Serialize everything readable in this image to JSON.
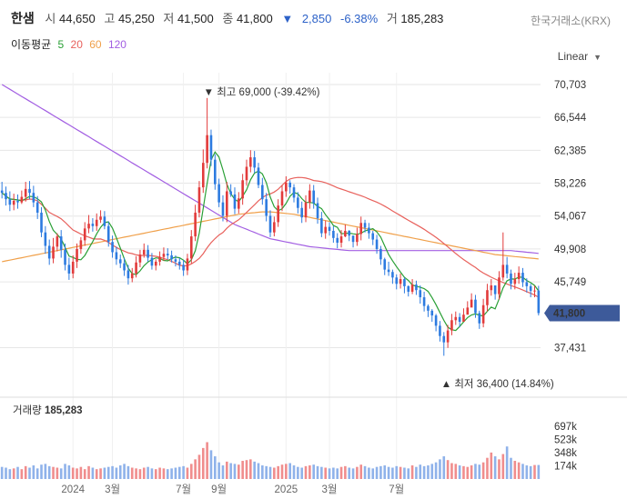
{
  "header": {
    "name": "한샘",
    "open_label": "시",
    "open": "44,650",
    "high_label": "고",
    "high": "45,250",
    "low_label": "저",
    "low": "41,500",
    "close_label": "종",
    "close": "41,800",
    "change": "2,850",
    "change_pct": "-6.38%",
    "volume_label": "거",
    "volume": "185,283",
    "exchange": "한국거래소(KRX)"
  },
  "ma_legend": {
    "label": "이동평균",
    "items": [
      {
        "period": "5",
        "color": "#2aa036"
      },
      {
        "period": "20",
        "color": "#e8615c"
      },
      {
        "period": "60",
        "color": "#f0a04a"
      },
      {
        "period": "120",
        "color": "#a25ee2"
      }
    ]
  },
  "scale_label": "Linear",
  "colors": {
    "up": "#e23b3b",
    "down": "#2d7be0",
    "grid": "#e6e6e6",
    "current_bg": "#3d5a9a"
  },
  "chart_data": {
    "type": "candlestick",
    "price_axis": {
      "ticks": [
        "70,703",
        "66,544",
        "62,385",
        "58,226",
        "54,067",
        "49,908",
        "45,749",
        "41,800",
        "37,431"
      ]
    },
    "x_axis": {
      "ticks": [
        "2024",
        "3월",
        "7월",
        "9월",
        "2025",
        "3월",
        "7월"
      ]
    },
    "current_price_label": "41,800",
    "annotations": {
      "high": {
        "text": "▼ 최고 69,000 (-39.42%)",
        "value": 69000
      },
      "low": {
        "text": "▲ 최저 36,400 (14.84%)",
        "value": 36400
      }
    },
    "volume_panel": {
      "title": "거래량",
      "value": "185,283",
      "ticks": [
        "697k",
        "523k",
        "348k",
        "174k"
      ]
    },
    "close": [
      57000,
      56200,
      55500,
      56000,
      55800,
      56500,
      57500,
      57000,
      55800,
      54500,
      52000,
      50300,
      48700,
      50200,
      51500,
      49800,
      47900,
      46800,
      48300,
      49900,
      51000,
      52500,
      53100,
      52800,
      53600,
      54000,
      52800,
      50800,
      49500,
      48600,
      48100,
      47200,
      46200,
      46800,
      48200,
      49200,
      49800,
      48800,
      47800,
      48300,
      48900,
      49300,
      49100,
      48600,
      48300,
      47900,
      47200,
      48700,
      51500,
      54500,
      57700,
      60800,
      64300,
      61200,
      58100,
      55800,
      54100,
      57200,
      56800,
      55000,
      56300,
      58600,
      60300,
      61500,
      60200,
      58000,
      56200,
      54100,
      52000,
      53300,
      55400,
      57200,
      58300,
      57700,
      56400,
      55100,
      53900,
      55800,
      57300,
      55700,
      53800,
      51900,
      52700,
      52200,
      51300,
      50700,
      51500,
      52200,
      51600,
      50800,
      51800,
      53200,
      52600,
      51900,
      51100,
      49900,
      48600,
      47300,
      47000,
      46300,
      45500,
      46100,
      45200,
      44500,
      45400,
      44700,
      43800,
      42700,
      42100,
      41500,
      40200,
      38900,
      38100,
      39600,
      40900,
      41300,
      40700,
      41600,
      42500,
      43500,
      41800,
      40500,
      42800,
      44700,
      45300,
      44200,
      46300,
      47900,
      46800,
      45500,
      46100,
      46900,
      45700,
      45200,
      44600,
      44650,
      41800
    ],
    "open": [
      57300,
      57000,
      56200,
      55500,
      56000,
      55800,
      56500,
      57500,
      57000,
      55800,
      54500,
      52000,
      50300,
      48700,
      50200,
      51500,
      49800,
      47900,
      46800,
      48300,
      49900,
      51000,
      52500,
      53100,
      52800,
      53600,
      54000,
      52800,
      50800,
      49500,
      48600,
      48100,
      47200,
      46200,
      46800,
      48200,
      49200,
      49800,
      48800,
      47800,
      48300,
      48900,
      49300,
      49100,
      48600,
      48300,
      47900,
      47200,
      48700,
      51500,
      54500,
      57700,
      60800,
      64300,
      61200,
      58100,
      55800,
      54100,
      57200,
      56800,
      55000,
      56300,
      58600,
      60300,
      61500,
      60200,
      58000,
      56200,
      54100,
      52000,
      53300,
      55400,
      57200,
      58300,
      57700,
      56400,
      55100,
      53900,
      55800,
      57300,
      55700,
      53800,
      51900,
      52700,
      52200,
      51300,
      50700,
      51500,
      52200,
      51600,
      50800,
      51800,
      53200,
      52600,
      51900,
      51100,
      49900,
      48600,
      47300,
      47000,
      46300,
      45500,
      46100,
      45200,
      44500,
      45400,
      44700,
      43800,
      42700,
      42100,
      41500,
      40200,
      38900,
      38100,
      39600,
      40900,
      41300,
      40700,
      41600,
      42500,
      43500,
      41800,
      40500,
      42800,
      44700,
      45300,
      44200,
      46300,
      47900,
      46800,
      45500,
      46100,
      46900,
      45700,
      45200,
      44600,
      44650
    ],
    "high": [
      58400,
      57800,
      57200,
      56900,
      56800,
      57300,
      58400,
      58500,
      57900,
      56600,
      55200,
      52800,
      51100,
      51300,
      51900,
      52300,
      50600,
      48800,
      49100,
      50600,
      51400,
      53300,
      54200,
      53800,
      54400,
      54800,
      54700,
      53400,
      51600,
      50200,
      49200,
      48800,
      47900,
      47500,
      49000,
      49800,
      50600,
      50400,
      49400,
      48600,
      49600,
      50100,
      50000,
      49700,
      49100,
      48800,
      48500,
      49300,
      52300,
      55500,
      58500,
      62500,
      69000,
      65000,
      61900,
      58800,
      56700,
      58400,
      58100,
      57700,
      57100,
      59400,
      61200,
      62400,
      62300,
      60800,
      58900,
      57000,
      54800,
      54000,
      56200,
      58000,
      59100,
      58600,
      58100,
      57100,
      55900,
      56700,
      58100,
      58000,
      56400,
      54600,
      53500,
      53300,
      52800,
      51900,
      52300,
      53000,
      52300,
      51600,
      52600,
      54000,
      53600,
      53200,
      52200,
      51700,
      50300,
      48800,
      48300,
      47300,
      46700,
      46800,
      46300,
      45300,
      46100,
      45900,
      45300,
      44500,
      42900,
      42300,
      41700,
      40800,
      39400,
      40300,
      41700,
      42000,
      41800,
      42400,
      43300,
      44300,
      44100,
      42100,
      43600,
      45500,
      46100,
      45300,
      47100,
      52000,
      48900,
      47300,
      46900,
      47700,
      47500,
      46200,
      45500,
      45250,
      45250
    ],
    "low": [
      56300,
      55400,
      54700,
      54800,
      55000,
      55600,
      55900,
      56200,
      55200,
      53700,
      51400,
      49300,
      47900,
      48100,
      49600,
      48800,
      47200,
      46000,
      46200,
      47500,
      49300,
      50300,
      51900,
      52100,
      52200,
      53200,
      52400,
      50200,
      48800,
      47900,
      47500,
      46500,
      45400,
      45700,
      46300,
      47600,
      48800,
      48300,
      47300,
      47200,
      47800,
      48400,
      48600,
      48200,
      47700,
      47300,
      46500,
      46600,
      48100,
      50900,
      53900,
      57000,
      60100,
      60400,
      57400,
      55200,
      53400,
      53300,
      56500,
      54300,
      54400,
      55500,
      57900,
      59600,
      59500,
      57600,
      55500,
      53400,
      51400,
      51500,
      52700,
      54700,
      56500,
      56900,
      55800,
      54400,
      53200,
      53300,
      55000,
      55000,
      53100,
      51400,
      51200,
      51600,
      50700,
      50000,
      50100,
      51400,
      50900,
      50100,
      50300,
      51000,
      52000,
      51200,
      50400,
      49300,
      47900,
      46600,
      46500,
      45500,
      44800,
      44900,
      44300,
      43900,
      44200,
      44100,
      43000,
      42000,
      41300,
      40700,
      39500,
      38200,
      36400,
      37400,
      39000,
      40300,
      40000,
      40800,
      41700,
      42800,
      41200,
      39800,
      40000,
      42000,
      44000,
      43500,
      43500,
      45900,
      46200,
      44800,
      44800,
      45500,
      45100,
      44400,
      43800,
      43800,
      41500
    ],
    "volume": [
      160000,
      150000,
      130000,
      140000,
      160000,
      130000,
      170000,
      150000,
      180000,
      140000,
      190000,
      200000,
      170000,
      160000,
      150000,
      140000,
      200000,
      180000,
      150000,
      140000,
      160000,
      130000,
      170000,
      150000,
      130000,
      140000,
      150000,
      160000,
      170000,
      150000,
      180000,
      200000,
      170000,
      150000,
      140000,
      130000,
      150000,
      160000,
      140000,
      130000,
      150000,
      140000,
      130000,
      140000,
      150000,
      160000,
      170000,
      150000,
      200000,
      260000,
      320000,
      410000,
      487000,
      380000,
      300000,
      220000,
      180000,
      230000,
      210000,
      200000,
      190000,
      240000,
      250000,
      260000,
      230000,
      210000,
      180000,
      170000,
      160000,
      150000,
      170000,
      190000,
      200000,
      210000,
      180000,
      160000,
      150000,
      170000,
      180000,
      190000,
      170000,
      160000,
      150000,
      140000,
      150000,
      140000,
      160000,
      170000,
      150000,
      140000,
      160000,
      190000,
      170000,
      150000,
      140000,
      160000,
      170000,
      180000,
      160000,
      150000,
      170000,
      160000,
      150000,
      140000,
      180000,
      160000,
      190000,
      170000,
      180000,
      200000,
      220000,
      260000,
      300000,
      250000,
      210000,
      200000,
      180000,
      170000,
      160000,
      180000,
      200000,
      190000,
      220000,
      280000,
      350000,
      300000,
      260000,
      330000,
      430000,
      280000,
      240000,
      220000,
      200000,
      180000,
      170000,
      185000,
      185283
    ],
    "ma5": [
      57000,
      56600,
      56233,
      56175,
      56100,
      56000,
      56260,
      56560,
      56520,
      56260,
      55860,
      54820,
      53380,
      52280,
      51740,
      51200,
      50100,
      49000,
      48840,
      48600,
      48540,
      49080,
      49980,
      50840,
      51820,
      52640,
      53240,
      53340,
      52540,
      51320,
      50020,
      48660,
      47480,
      46800,
      46660,
      47140,
      47800,
      48260,
      48560,
      48780,
      48720,
      48460,
      48400,
      48700,
      48880,
      48800,
      48500,
      48020,
      48540,
      49680,
      51940,
      55040,
      58200,
      61180,
      62180,
      61540,
      59900,
      58100,
      56920,
      56180,
      55880,
      56580,
      57400,
      58660,
      59500,
      59760,
      59400,
      58280,
      56460,
      55260,
      54740,
      55000,
      55660,
      56560,
      57060,
      56880,
      56280,
      55800,
      55800,
      55720,
      55300,
      55000,
      54240,
      53620,
      52880,
      52640,
      51840,
      51880,
      51920,
      51820,
      51760,
      51900,
      52200,
      52340,
      52480,
      52060,
      51400,
      50300,
      49200,
      48420,
      47680,
      46980,
      46320,
      45920,
      45360,
      45200,
      45060,
      44900,
      44540,
      43760,
      42860,
      41880,
      40880,
      40030,
      39690,
      39600,
      40100,
      40690,
      41230,
      41560,
      41700,
      41520,
      41440,
      42020,
      42560,
      42340,
      43600,
      44980,
      45880,
      46120,
      46100,
      46360,
      46320,
      45920,
      45640,
      45290,
      44610
    ],
    "ma20": [
      57000,
      56600,
      56230,
      56180,
      56100,
      56080,
      56120,
      56220,
      56180,
      55990,
      55550,
      55060,
      54530,
      54270,
      54010,
      53730,
      53290,
      52780,
      52310,
      52060,
      51790,
      51560,
      51400,
      51210,
      51160,
      51170,
      51000,
      50740,
      50400,
      50110,
      49840,
      49630,
      49410,
      49320,
      49160,
      49080,
      49090,
      49090,
      49040,
      48980,
      48860,
      48700,
      48540,
      48330,
      48110,
      47840,
      47770,
      47790,
      48030,
      48340,
      48730,
      49310,
      50060,
      50710,
      51220,
      51670,
      51990,
      52530,
      52970,
      53290,
      53600,
      54050,
      54530,
      55000,
      55500,
      56000,
      56400,
      56710,
      56870,
      57110,
      57460,
      57960,
      58440,
      58760,
      58890,
      58960,
      58950,
      58880,
      58740,
      58560,
      58510,
      58430,
      58280,
      58090,
      57870,
      57640,
      57480,
      57320,
      57140,
      56980,
      56810,
      56640,
      56450,
      56230,
      56030,
      55830,
      55590,
      55320,
      55030,
      54720,
      54430,
      54130,
      53830,
      53530,
      53250,
      52980,
      52690,
      52390,
      52060,
      51730,
      51380,
      51000,
      50600,
      50180,
      49760,
      49330,
      48940,
      48570,
      48230,
      47890,
      47560,
      47190,
      46860,
      46600,
      46340,
      46100,
      45880,
      45670,
      45480,
      45280,
      45100,
      44920,
      44720,
      44510,
      44300,
      44080,
      43810
    ],
    "ma60": [
      48300,
      48400,
      48500,
      48600,
      48700,
      48800,
      48900,
      49000,
      49100,
      49200,
      49300,
      49400,
      49500,
      49600,
      49700,
      49800,
      49900,
      50000,
      50100,
      50200,
      50300,
      50400,
      50500,
      50600,
      50700,
      50800,
      50900,
      51000,
      51100,
      51200,
      51300,
      51400,
      51500,
      51600,
      51700,
      51800,
      51900,
      52000,
      52100,
      52200,
      52300,
      52400,
      52500,
      52600,
      52700,
      52800,
      52900,
      53000,
      53100,
      53200,
      53300,
      53400,
      53500,
      53600,
      53700,
      53800,
      53900,
      54000,
      54100,
      54200,
      54300,
      54350,
      54400,
      54450,
      54500,
      54550,
      54600,
      54600,
      54600,
      54550,
      54500,
      54450,
      54400,
      54350,
      54300,
      54200,
      54100,
      54000,
      53900,
      53800,
      53700,
      53600,
      53500,
      53400,
      53300,
      53200,
      53100,
      53000,
      52900,
      52800,
      52700,
      52600,
      52500,
      52400,
      52300,
      52200,
      52100,
      52000,
      51900,
      51800,
      51700,
      51600,
      51500,
      51400,
      51300,
      51200,
      51100,
      51000,
      50900,
      50800,
      50700,
      50600,
      50500,
      50400,
      50300,
      50200,
      50100,
      50000,
      49900,
      49800,
      49700,
      49600,
      49500,
      49400,
      49300,
      49200,
      49150,
      49100,
      49050,
      49000,
      48950,
      48900,
      48850,
      48800,
      48750,
      48700,
      48650
    ],
    "ma120": [
      70700,
      70400,
      70100,
      69800,
      69500,
      69200,
      68900,
      68600,
      68300,
      68000,
      67700,
      67400,
      67100,
      66800,
      66500,
      66200,
      65900,
      65600,
      65300,
      65000,
      64700,
      64400,
      64100,
      63800,
      63500,
      63200,
      62900,
      62600,
      62300,
      62000,
      61700,
      61400,
      61100,
      60800,
      60500,
      60200,
      59900,
      59600,
      59300,
      59000,
      58700,
      58400,
      58100,
      57800,
      57500,
      57200,
      56900,
      56600,
      56300,
      56000,
      55700,
      55400,
      55100,
      54800,
      54500,
      54200,
      53900,
      53600,
      53300,
      53000,
      52800,
      52600,
      52400,
      52200,
      52000,
      51800,
      51600,
      51400,
      51200,
      51100,
      51000,
      50900,
      50800,
      50700,
      50600,
      50500,
      50400,
      50300,
      50200,
      50150,
      50100,
      50050,
      50000,
      49950,
      49900,
      49850,
      49800,
      49750,
      49700,
      49700,
      49700,
      49700,
      49700,
      49700,
      49700,
      49700,
      49700,
      49700,
      49700,
      49700,
      49700,
      49700,
      49700,
      49700,
      49700,
      49700,
      49700,
      49700,
      49700,
      49700,
      49700,
      49700,
      49700,
      49700,
      49700,
      49700,
      49700,
      49700,
      49700,
      49700,
      49700,
      49700,
      49700,
      49700,
      49700,
      49700,
      49700,
      49700,
      49700,
      49700,
      49650,
      49600,
      49550,
      49500,
      49450,
      49400,
      49350
    ]
  }
}
